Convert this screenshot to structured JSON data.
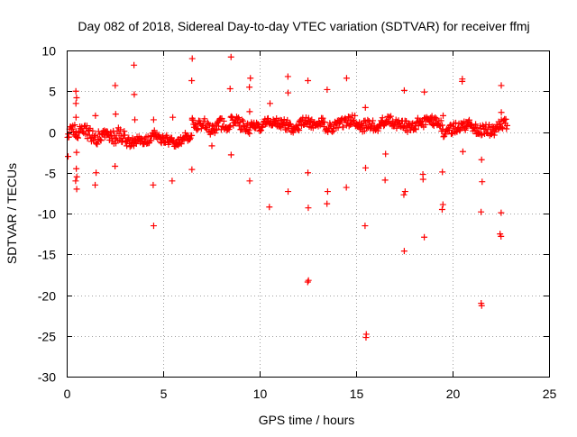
{
  "chart_data": {
    "type": "scatter",
    "title": "Day 082 of 2018, Sidereal Day-to-day VTEC variation (SDTVAR) for receiver ffmj",
    "xlabel": "GPS time / hours",
    "ylabel": "SDTVAR / TECUs",
    "xlim": [
      0,
      25
    ],
    "ylim": [
      -30,
      10
    ],
    "xticks": [
      0,
      5,
      10,
      15,
      20,
      25
    ],
    "yticks": [
      10,
      5,
      0,
      -5,
      -10,
      -15,
      -20,
      -25,
      -30
    ],
    "grid": true,
    "marker": "+",
    "color": "#ff0000",
    "series": [
      {
        "name": "SDTVAR",
        "band": {
          "x_start": 0.05,
          "x_end": 22.85,
          "step": 0.0333,
          "segments": [
            {
              "x": [
                0.0,
                2.0
              ],
              "center": -0.2,
              "spread": 1.6
            },
            {
              "x": [
                2.0,
                3.5
              ],
              "center": -0.8,
              "spread": 1.8
            },
            {
              "x": [
                3.5,
                6.5
              ],
              "center": -0.9,
              "spread": 1.2
            },
            {
              "x": [
                6.5,
                9.5
              ],
              "center": 0.9,
              "spread": 1.6
            },
            {
              "x": [
                9.5,
                13.0
              ],
              "center": 0.9,
              "spread": 1.3
            },
            {
              "x": [
                13.0,
                16.0
              ],
              "center": 1.0,
              "spread": 1.4
            },
            {
              "x": [
                16.0,
                19.5
              ],
              "center": 1.0,
              "spread": 1.3
            },
            {
              "x": [
                19.5,
                22.9
              ],
              "center": 0.5,
              "spread": 1.3
            }
          ]
        },
        "outliers": [
          [
            0.5,
            5.0
          ],
          [
            0.5,
            4.2
          ],
          [
            0.5,
            3.5
          ],
          [
            0.5,
            -5.5
          ],
          [
            0.5,
            -6.0
          ],
          [
            0.5,
            -7.0
          ],
          [
            0.5,
            -4.5
          ],
          [
            0.5,
            1.8
          ],
          [
            0.5,
            -2.5
          ],
          [
            0.1,
            -3.0
          ],
          [
            1.5,
            -5.0
          ],
          [
            1.5,
            -6.5
          ],
          [
            1.5,
            2.0
          ],
          [
            2.5,
            5.7
          ],
          [
            2.5,
            -4.2
          ],
          [
            2.5,
            2.2
          ],
          [
            3.5,
            8.2
          ],
          [
            3.5,
            4.6
          ],
          [
            3.5,
            1.5
          ],
          [
            4.5,
            -6.5
          ],
          [
            4.5,
            -11.5
          ],
          [
            4.5,
            1.5
          ],
          [
            5.5,
            -6.0
          ],
          [
            5.5,
            1.8
          ],
          [
            6.5,
            9.0
          ],
          [
            6.5,
            6.3
          ],
          [
            6.5,
            -4.6
          ],
          [
            6.5,
            1.5
          ],
          [
            7.5,
            -1.7
          ],
          [
            8.5,
            9.2
          ],
          [
            8.5,
            5.3
          ],
          [
            8.5,
            -2.8
          ],
          [
            9.5,
            6.6
          ],
          [
            9.5,
            5.5
          ],
          [
            9.5,
            -6.0
          ],
          [
            9.5,
            2.5
          ],
          [
            10.5,
            3.5
          ],
          [
            10.5,
            -9.2
          ],
          [
            11.5,
            6.8
          ],
          [
            11.5,
            4.8
          ],
          [
            11.5,
            -7.3
          ],
          [
            12.5,
            6.3
          ],
          [
            12.5,
            -5.0
          ],
          [
            12.5,
            -9.3
          ],
          [
            12.5,
            -18.2
          ],
          [
            12.5,
            -18.4
          ],
          [
            13.5,
            5.2
          ],
          [
            13.5,
            -7.3
          ],
          [
            13.5,
            -8.8
          ],
          [
            14.5,
            6.6
          ],
          [
            14.5,
            -6.8
          ],
          [
            15.5,
            3.0
          ],
          [
            15.5,
            -4.4
          ],
          [
            15.5,
            -11.5
          ],
          [
            15.5,
            -24.8
          ],
          [
            15.5,
            -25.2
          ],
          [
            16.5,
            -5.9
          ],
          [
            16.5,
            -2.7
          ],
          [
            17.5,
            5.1
          ],
          [
            17.5,
            -7.3
          ],
          [
            17.5,
            -7.7
          ],
          [
            17.5,
            -14.6
          ],
          [
            18.5,
            4.9
          ],
          [
            18.5,
            -5.2
          ],
          [
            18.5,
            -5.8
          ],
          [
            18.5,
            -12.9
          ],
          [
            19.5,
            -4.9
          ],
          [
            19.5,
            -8.9
          ],
          [
            19.5,
            -9.5
          ],
          [
            19.5,
            2.0
          ],
          [
            20.5,
            6.5
          ],
          [
            20.5,
            6.2
          ],
          [
            20.5,
            -2.4
          ],
          [
            21.5,
            -3.4
          ],
          [
            21.5,
            -6.1
          ],
          [
            21.5,
            -9.8
          ],
          [
            21.5,
            -21.0
          ],
          [
            21.5,
            -21.3
          ],
          [
            22.5,
            5.7
          ],
          [
            22.5,
            2.4
          ],
          [
            22.5,
            -9.9
          ],
          [
            22.5,
            -12.8
          ],
          [
            22.5,
            -12.5
          ]
        ]
      }
    ]
  }
}
